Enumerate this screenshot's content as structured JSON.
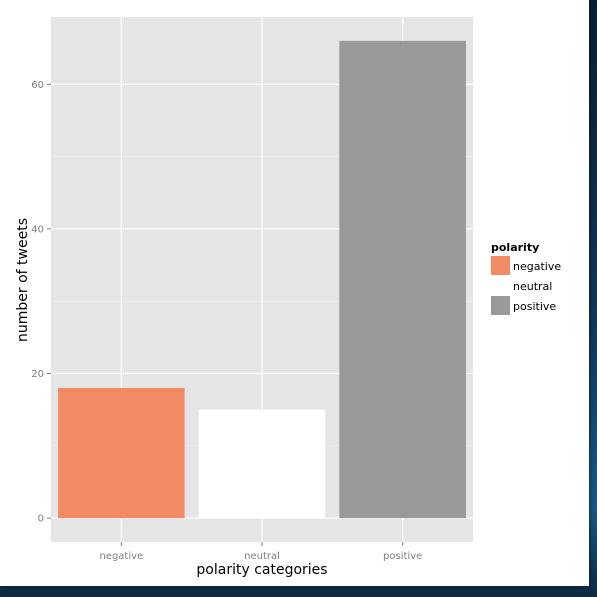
{
  "chart_data": {
    "type": "bar",
    "title": "",
    "xlabel": "polarity categories",
    "ylabel": "number of tweets",
    "categories": [
      "negative",
      "neutral",
      "positive"
    ],
    "values": [
      18,
      15,
      66
    ],
    "colors": [
      "#f28b64",
      "#ffffff",
      "#999999"
    ],
    "ylim": [
      -3.3,
      69.3
    ],
    "yticks": [
      0,
      20,
      40,
      60
    ],
    "grid": true,
    "panel_background": "#e5e5e5",
    "legend": {
      "title": "polarity",
      "position": "right",
      "entries": [
        {
          "label": "negative",
          "color": "#f28b64"
        },
        {
          "label": "neutral",
          "color": "#ffffff"
        },
        {
          "label": "positive",
          "color": "#999999"
        }
      ]
    }
  }
}
